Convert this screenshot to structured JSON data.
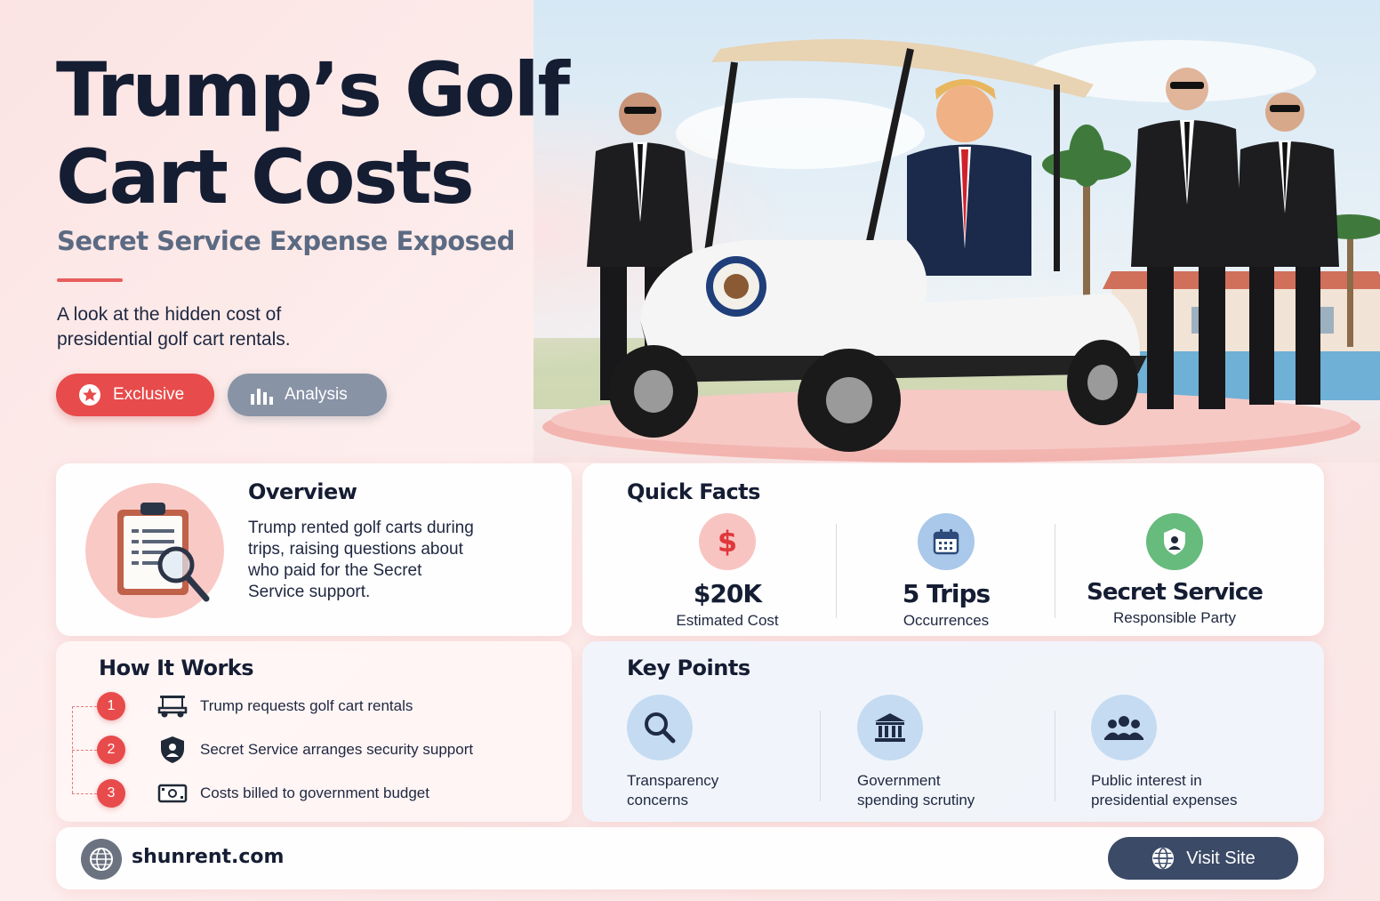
{
  "header": {
    "title_line1": "Trump’s Golf",
    "title_line2": "Cart Costs",
    "subtitle": "Secret Service Expense Exposed",
    "description": "A look at the hidden cost of presidential golf cart rentals.",
    "tags": [
      {
        "label": "Exclusive",
        "icon": "star-icon"
      },
      {
        "label": "Analysis",
        "icon": "bar-chart-icon"
      }
    ]
  },
  "overview": {
    "title": "Overview",
    "text": "Trump rented golf carts during trips, raising questions about who paid for the Secret Service support.",
    "icon": "clipboard-magnifier-icon"
  },
  "quick_facts": {
    "title": "Quick Facts",
    "items": [
      {
        "value": "$20K",
        "label": "Estimated Cost",
        "icon": "dollar-icon"
      },
      {
        "value": "5 Trips",
        "label": "Occurrences",
        "icon": "calendar-icon"
      },
      {
        "value": "Secret Service",
        "label": "Responsible Party",
        "icon": "shield-icon"
      }
    ]
  },
  "how_it_works": {
    "title": "How It Works",
    "steps": [
      {
        "num": "1",
        "text": "Trump requests golf cart rentals",
        "icon": "golf-cart-icon"
      },
      {
        "num": "2",
        "text": "Secret Service arranges security support",
        "icon": "agent-shield-icon"
      },
      {
        "num": "3",
        "text": "Costs billed to government budget",
        "icon": "banknote-icon"
      }
    ]
  },
  "key_points": {
    "title": "Key Points",
    "items": [
      {
        "line1": "Transparency",
        "line2": "concerns",
        "icon": "search-icon"
      },
      {
        "line1": "Government",
        "line2": "spending scrutiny",
        "icon": "government-building-icon"
      },
      {
        "line1": "Public interest in",
        "line2": "presidential expenses",
        "icon": "people-icon"
      }
    ]
  },
  "footer": {
    "site": "shunrent.com",
    "button_label": "Visit Site"
  },
  "colors": {
    "accent_red": "#e84b4b",
    "navy": "#151d33",
    "slate": "#5b6a82",
    "button_dark": "#3b4a66"
  }
}
